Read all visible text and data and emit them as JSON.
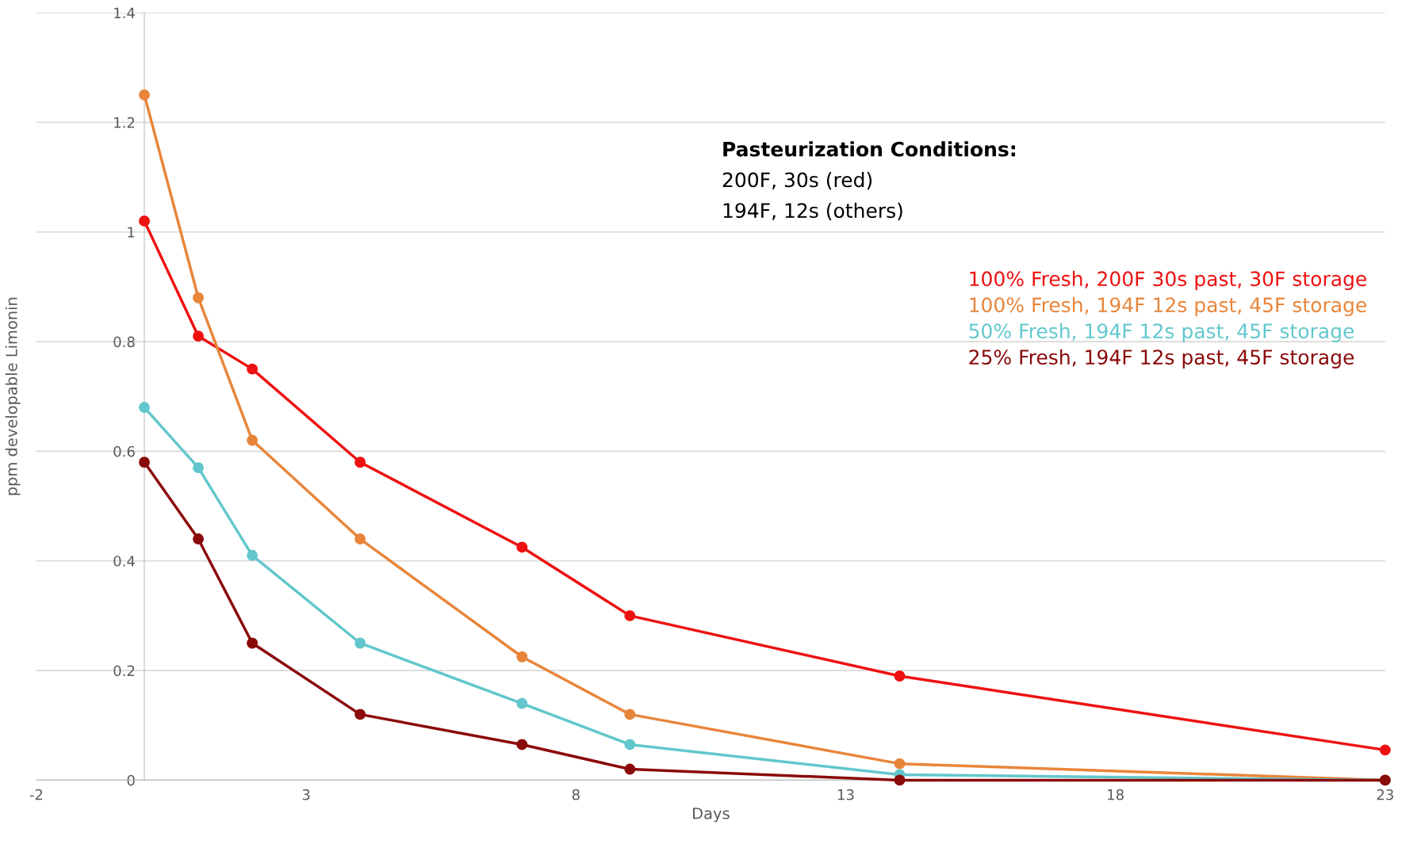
{
  "chart_data": {
    "type": "line",
    "xlabel": "Days",
    "ylabel": "ppm developable Limonin",
    "x": [
      0,
      1,
      2,
      4,
      7,
      9,
      14,
      23
    ],
    "series": [
      {
        "name": "100% Fresh, 200F 30s past, 30F storage",
        "color": "#ee1111",
        "values": [
          1.02,
          0.81,
          0.75,
          0.58,
          0.425,
          0.3,
          0.19,
          0.055
        ]
      },
      {
        "name": "100% Fresh, 194F 12s past, 45F storage",
        "color": "#e8853a",
        "values": [
          1.25,
          0.88,
          0.62,
          0.44,
          0.225,
          0.12,
          0.03,
          0
        ]
      },
      {
        "name": "50% Fresh, 194F 12s past, 45F storage",
        "color": "#62c7cc",
        "values": [
          0.68,
          0.57,
          0.41,
          0.25,
          0.14,
          0.065,
          0.01,
          0
        ]
      },
      {
        "name": "25% Fresh, 194F 12s past, 45F storage",
        "color": "#8b0a0a",
        "values": [
          0.58,
          0.44,
          0.25,
          0.12,
          0.065,
          0.02,
          0,
          0
        ]
      }
    ],
    "xlim": [
      -2,
      23
    ],
    "xticks": [
      -2,
      3,
      8,
      13,
      18,
      23
    ],
    "ylim": [
      0,
      1.4
    ],
    "yticks": [
      0,
      0.2,
      0.4,
      0.6,
      0.8,
      1,
      1.2,
      1.4
    ],
    "grid": "y",
    "legend": "right",
    "marker": "circle",
    "line_style": "solid",
    "annotations": [
      "Pasteurization Conditions:",
      "200F, 30s (red)",
      "194F, 12s (others)"
    ]
  }
}
